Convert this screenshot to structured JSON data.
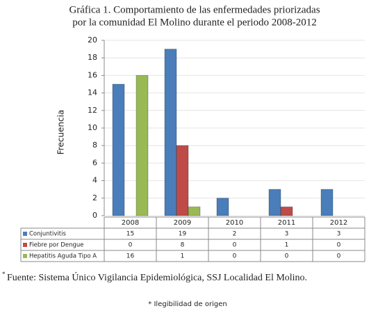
{
  "chart_data": {
    "type": "bar",
    "title_lines": [
      "Gráfica 1. Comportamiento de las enfermedades priorizadas",
      "por la comunidad El Molino durante el periodo 2008-2012"
    ],
    "y_label": "Frecuencia",
    "categories": [
      "2008",
      "2009",
      "2010",
      "2011",
      "2012"
    ],
    "series": [
      {
        "name": "Conjuntivitis",
        "color": "#4a7ebb",
        "values": [
          15,
          19,
          2,
          3,
          3
        ]
      },
      {
        "name": "Fiebre por Dengue",
        "color": "#be4b48",
        "values": [
          0,
          8,
          0,
          1,
          0
        ]
      },
      {
        "name": "Hepatitis Aguda Tipo A",
        "color": "#98b954",
        "values": [
          16,
          1,
          0,
          0,
          0
        ]
      }
    ],
    "ylim": [
      0,
      20
    ],
    "yticks": [
      0,
      2,
      4,
      6,
      8,
      10,
      12,
      14,
      16,
      18,
      20
    ],
    "grid": true
  },
  "footer": {
    "source_marker": "*",
    "source": "Fuente: Sistema Único Vigilancia  Epidemiológica, SSJ Localidad El Molino.",
    "note": "* Ilegibilidad de origen"
  }
}
